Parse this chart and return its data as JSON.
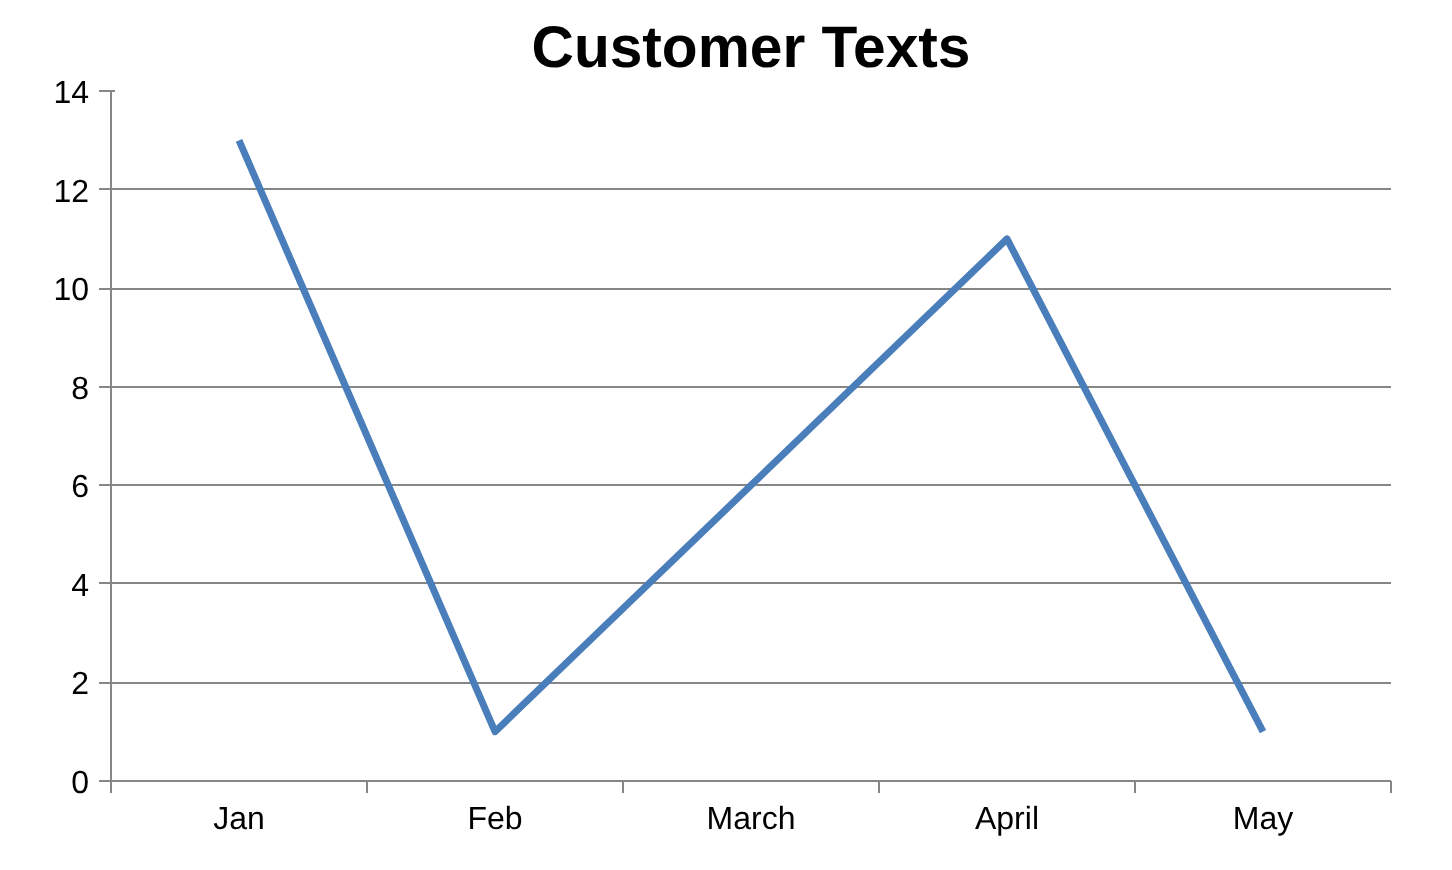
{
  "chart_data": {
    "type": "line",
    "title": "Customer Texts",
    "categories": [
      "Jan",
      "Feb",
      "March",
      "April",
      "May"
    ],
    "series": [
      {
        "color": "#4a7ebb",
        "values": [
          13,
          1,
          6,
          11,
          1
        ]
      }
    ],
    "ylim": [
      0,
      14
    ],
    "yticks": [
      0,
      2,
      4,
      6,
      8,
      10,
      12,
      14
    ],
    "grid": "y",
    "marker": "none",
    "line_style": "solid"
  }
}
